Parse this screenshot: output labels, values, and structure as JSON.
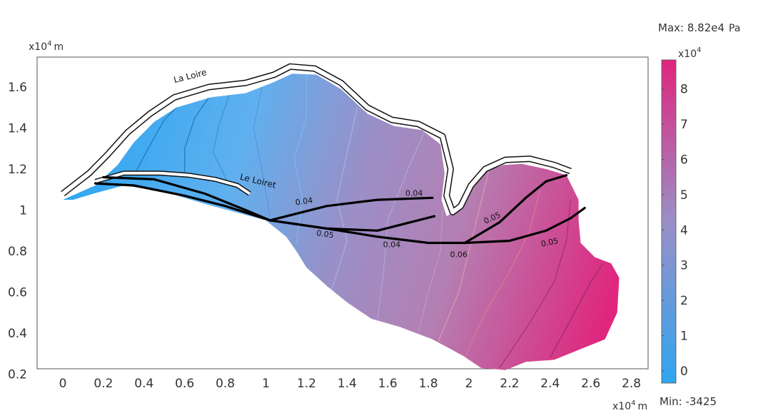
{
  "chart_data": {
    "type": "heatmap",
    "x_axis": {
      "unit_prefix": "x10",
      "unit_exp": "4",
      "unit": "m",
      "range": [
        -0.12,
        2.88
      ],
      "ticks": [
        "0",
        "0.2",
        "0.4",
        "0.6",
        "0.8",
        "1",
        "1.2",
        "1.4",
        "1.6",
        "1.8",
        "2",
        "2.2",
        "2.4",
        "2.6",
        "2.8"
      ]
    },
    "y_axis": {
      "unit_prefix": "x10",
      "unit_exp": "4",
      "unit": "m",
      "range": [
        0.13,
        1.76
      ],
      "ticks": [
        "0.2",
        "0.4",
        "0.6",
        "0.8",
        "1",
        "1.2",
        "1.4",
        "1.6"
      ]
    },
    "colorbar": {
      "max_label": "Max: 8.82e4",
      "max_unit": "Pa",
      "min_label": "Min: -3425",
      "scale_prefix": "x10",
      "scale_exp": "4",
      "ticks": [
        "0",
        "1",
        "2",
        "3",
        "4",
        "5",
        "6",
        "7",
        "8"
      ],
      "range": [
        -0.3425,
        8.82
      ],
      "colors": [
        "#2ea6f0",
        "#9a8fc7",
        "#e0257d"
      ]
    },
    "rivers": [
      {
        "label": "La Loire",
        "x": 0.55,
        "y": 1.62
      },
      {
        "label": "Le Loiret",
        "x": 0.87,
        "y": 1.15
      }
    ],
    "annotations": [
      {
        "label": "0.04",
        "x": 1.19,
        "y": 1.03
      },
      {
        "label": "0.04",
        "x": 1.73,
        "y": 1.07
      },
      {
        "label": "0.05",
        "x": 1.29,
        "y": 0.87
      },
      {
        "label": "0.04",
        "x": 1.62,
        "y": 0.82
      },
      {
        "label": "0.06",
        "x": 1.95,
        "y": 0.77
      },
      {
        "label": "0.05",
        "x": 2.12,
        "y": 0.95
      },
      {
        "label": "0.05",
        "x": 2.4,
        "y": 0.83
      }
    ]
  }
}
